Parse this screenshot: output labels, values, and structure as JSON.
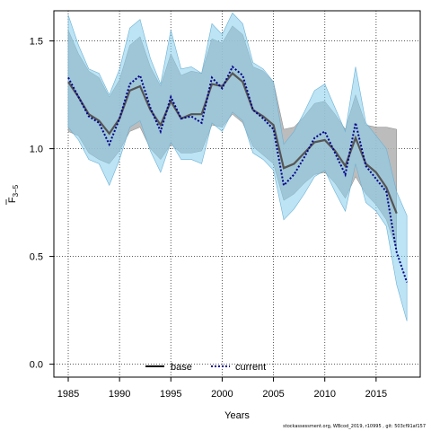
{
  "footnote": "stockassessment.org, WBcod_2019, r10995 , git: 503cf91af157",
  "colors": {
    "base_band": "#b0b0b0",
    "current_band": "#87ceeb",
    "current_line": "#00008b",
    "base_line": "#000000"
  },
  "chart_data": {
    "type": "line",
    "title": "",
    "xlabel": "Years",
    "ylabel": "F̅ 3–5",
    "ylabel_main": "F",
    "ylabel_sub": "3−5",
    "xlim": [
      1983.6,
      2019.3
    ],
    "ylim": [
      -0.06,
      1.64
    ],
    "x_ticks": [
      1985,
      1990,
      1995,
      2000,
      2005,
      2010,
      2015
    ],
    "y_ticks": [
      0.0,
      0.5,
      1.0,
      1.5
    ],
    "y_tick_labels": [
      "0.0",
      "0.5",
      "1.0",
      "1.5"
    ],
    "grid": true,
    "legend_placement": "bottom-center",
    "legend": [
      {
        "name": "base",
        "style": "solid",
        "color": "#000000"
      },
      {
        "name": "current",
        "style": "dotted",
        "color": "#00008b"
      }
    ],
    "x": [
      1985,
      1986,
      1987,
      1988,
      1989,
      1990,
      1991,
      1992,
      1993,
      1994,
      1995,
      1996,
      1997,
      1998,
      1999,
      2000,
      2001,
      2002,
      2003,
      2004,
      2005,
      2006,
      2007,
      2008,
      2009,
      2010,
      2011,
      2012,
      2013,
      2014,
      2015,
      2016,
      2017
    ],
    "series": [
      {
        "name": "base",
        "values": [
          1.31,
          1.24,
          1.16,
          1.13,
          1.07,
          1.14,
          1.27,
          1.29,
          1.18,
          1.11,
          1.22,
          1.14,
          1.16,
          1.16,
          1.3,
          1.29,
          1.35,
          1.31,
          1.18,
          1.15,
          1.11,
          0.91,
          0.93,
          0.98,
          1.03,
          1.04,
          0.99,
          0.92,
          1.05,
          0.93,
          0.89,
          0.82,
          0.7
        ],
        "lower": [
          1.08,
          1.06,
          0.98,
          0.95,
          0.93,
          0.99,
          1.08,
          1.1,
          1.0,
          0.95,
          1.02,
          0.98,
          0.98,
          0.99,
          1.11,
          1.1,
          1.16,
          1.12,
          1.01,
          0.97,
          0.93,
          0.76,
          0.79,
          0.84,
          0.88,
          0.89,
          0.84,
          0.77,
          0.87,
          0.79,
          0.74,
          0.67,
          0.53
        ],
        "upper": [
          1.55,
          1.44,
          1.36,
          1.33,
          1.24,
          1.32,
          1.48,
          1.52,
          1.38,
          1.29,
          1.44,
          1.34,
          1.36,
          1.35,
          1.51,
          1.49,
          1.57,
          1.53,
          1.38,
          1.36,
          1.31,
          1.09,
          1.1,
          1.15,
          1.21,
          1.22,
          1.16,
          1.09,
          1.25,
          1.11,
          1.1,
          1.1,
          1.09
        ]
      },
      {
        "name": "current",
        "x": [
          1985,
          1986,
          1987,
          1988,
          1989,
          1990,
          1991,
          1992,
          1993,
          1994,
          1995,
          1996,
          1997,
          1998,
          1999,
          2000,
          2001,
          2002,
          2003,
          2004,
          2005,
          2006,
          2007,
          2008,
          2009,
          2010,
          2011,
          2012,
          2013,
          2014,
          2015,
          2016,
          2017,
          2018
        ],
        "values": [
          1.33,
          1.24,
          1.15,
          1.12,
          1.02,
          1.14,
          1.3,
          1.34,
          1.19,
          1.08,
          1.24,
          1.14,
          1.15,
          1.12,
          1.33,
          1.28,
          1.38,
          1.34,
          1.18,
          1.14,
          1.09,
          0.83,
          0.88,
          0.96,
          1.05,
          1.08,
          0.98,
          0.88,
          1.12,
          0.92,
          0.86,
          0.8,
          0.52,
          0.38
        ],
        "lower": [
          1.1,
          1.04,
          0.95,
          0.93,
          0.83,
          0.95,
          1.1,
          1.13,
          0.99,
          0.89,
          1.03,
          0.95,
          0.95,
          0.93,
          1.12,
          1.08,
          1.17,
          1.13,
          0.98,
          0.95,
          0.9,
          0.67,
          0.72,
          0.79,
          0.87,
          0.9,
          0.8,
          0.71,
          0.93,
          0.75,
          0.71,
          0.64,
          0.37,
          0.2
        ],
        "upper": [
          1.62,
          1.48,
          1.37,
          1.35,
          1.25,
          1.37,
          1.56,
          1.6,
          1.42,
          1.3,
          1.55,
          1.37,
          1.38,
          1.35,
          1.58,
          1.53,
          1.63,
          1.58,
          1.4,
          1.37,
          1.31,
          1.02,
          1.08,
          1.17,
          1.27,
          1.3,
          1.19,
          1.08,
          1.38,
          1.12,
          1.06,
          1.0,
          0.8,
          0.69
        ]
      }
    ]
  }
}
